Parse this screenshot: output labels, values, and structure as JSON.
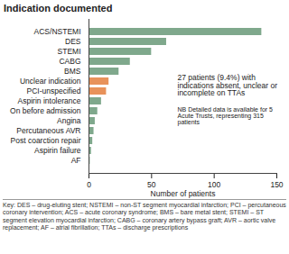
{
  "chart_data": {
    "type": "bar",
    "orientation": "horizontal",
    "title": "Indication documented",
    "x_label": "Number of patients",
    "categories": [
      "ACS/NSTEMI",
      "DES",
      "STEMI",
      "CABG",
      "BMS",
      "Unclear indication",
      "PCI-unspecified",
      "Aspirin intolerance",
      "On before admission",
      "Angina",
      "Percutaneous AVR",
      "Post coarction repair",
      "Aspirin failure",
      "AF"
    ],
    "values": [
      138,
      62,
      50,
      33,
      24,
      16,
      14,
      10,
      7,
      5,
      4,
      3,
      2,
      1
    ],
    "colors": [
      "#7fa88c",
      "#7fa88c",
      "#7fa88c",
      "#7fa88c",
      "#7fa88c",
      "#e8925a",
      "#e8925a",
      "#7fa88c",
      "#7fa88c",
      "#7fa88c",
      "#7fa88c",
      "#7fa88c",
      "#7fa88c",
      "#7fa88c"
    ],
    "xlim": [
      0,
      150
    ],
    "xticks": [
      0,
      50,
      100,
      150
    ],
    "grid": false,
    "annotations": [
      "27 patients (9.4%) with indications absent, unclear or incomplete on TTAs",
      "NB Detailed data is available for 5 Acute Trusts, representing 315 patients"
    ],
    "caption": "Key: DES – drug-eluting stent; NSTEMI – non-ST segment myocardial infarction; PCI – percutaneous coronary intervention; ACS – acute coronary syndrome; BMS – bare metal stent; STEMI – ST segment elevation myocardial infarction; CABG – coronary artery bypass graft; AVR – aortic valve replacement; AF – atrial fibrillation; TTAs – discharge prescriptions"
  }
}
